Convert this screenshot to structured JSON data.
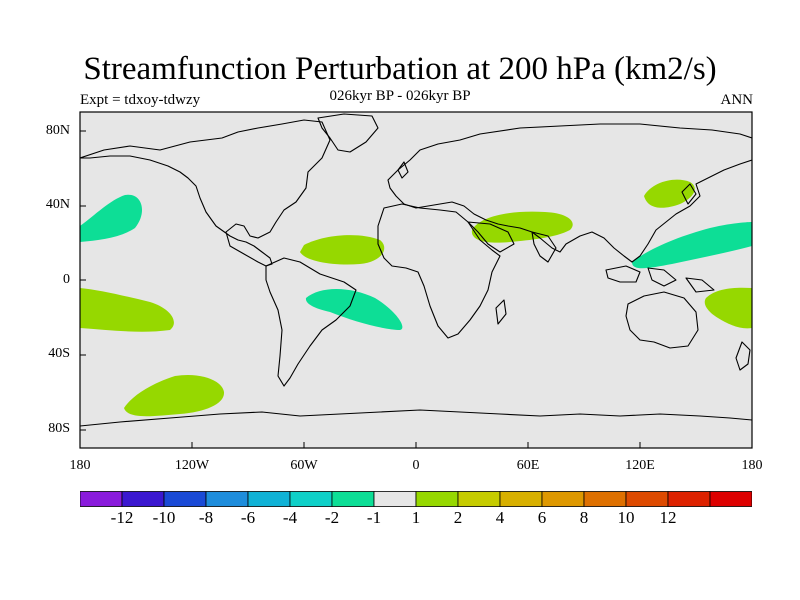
{
  "title": "Streamfunction Perturbation at 200 hPa (km2/s)",
  "subtitle_left": "Expt = tdxoy-tdwzy",
  "subtitle_center": "026kyr BP - 026kyr BP",
  "subtitle_right": "ANN",
  "map": {
    "ocean_color": "#e6e6e6",
    "lat_labels": [
      "80N",
      "40N",
      "0",
      "40S",
      "80S"
    ],
    "lon_labels": [
      "180",
      "120W",
      "60W",
      "0",
      "60E",
      "120E",
      "180"
    ]
  },
  "colorbar": {
    "colors": [
      "#8a1bdc",
      "#3b18d0",
      "#1a4ad6",
      "#1e8ddc",
      "#10b2d6",
      "#0fd0c8",
      "#0dde96",
      "#e6e6e6",
      "#96d800",
      "#c6cc00",
      "#d8b000",
      "#de9800",
      "#de7000",
      "#dd4a00",
      "#dd2200",
      "#dd0000"
    ],
    "labels": [
      "-12",
      "-10",
      "-8",
      "-6",
      "-4",
      "-2",
      "-1",
      "1",
      "2",
      "4",
      "6",
      "8",
      "10",
      "12"
    ]
  },
  "anomalies": [
    {
      "id": "n-pacific-west",
      "sign": "negative",
      "color": "#0dde96"
    },
    {
      "id": "atlantic-tropical-north",
      "sign": "positive",
      "color": "#96d800"
    },
    {
      "id": "south-america-east",
      "sign": "negative",
      "color": "#0dde96"
    },
    {
      "id": "middle-east",
      "sign": "positive",
      "color": "#96d800"
    },
    {
      "id": "east-asia-north",
      "sign": "positive",
      "color": "#96d800"
    },
    {
      "id": "west-pacific",
      "sign": "negative",
      "color": "#0dde96"
    },
    {
      "id": "south-pacific-west",
      "sign": "positive",
      "color": "#96d800"
    },
    {
      "id": "south-pacific-east",
      "sign": "positive",
      "color": "#96d800"
    },
    {
      "id": "southern-ocean-pacific",
      "sign": "positive",
      "color": "#96d800"
    }
  ]
}
